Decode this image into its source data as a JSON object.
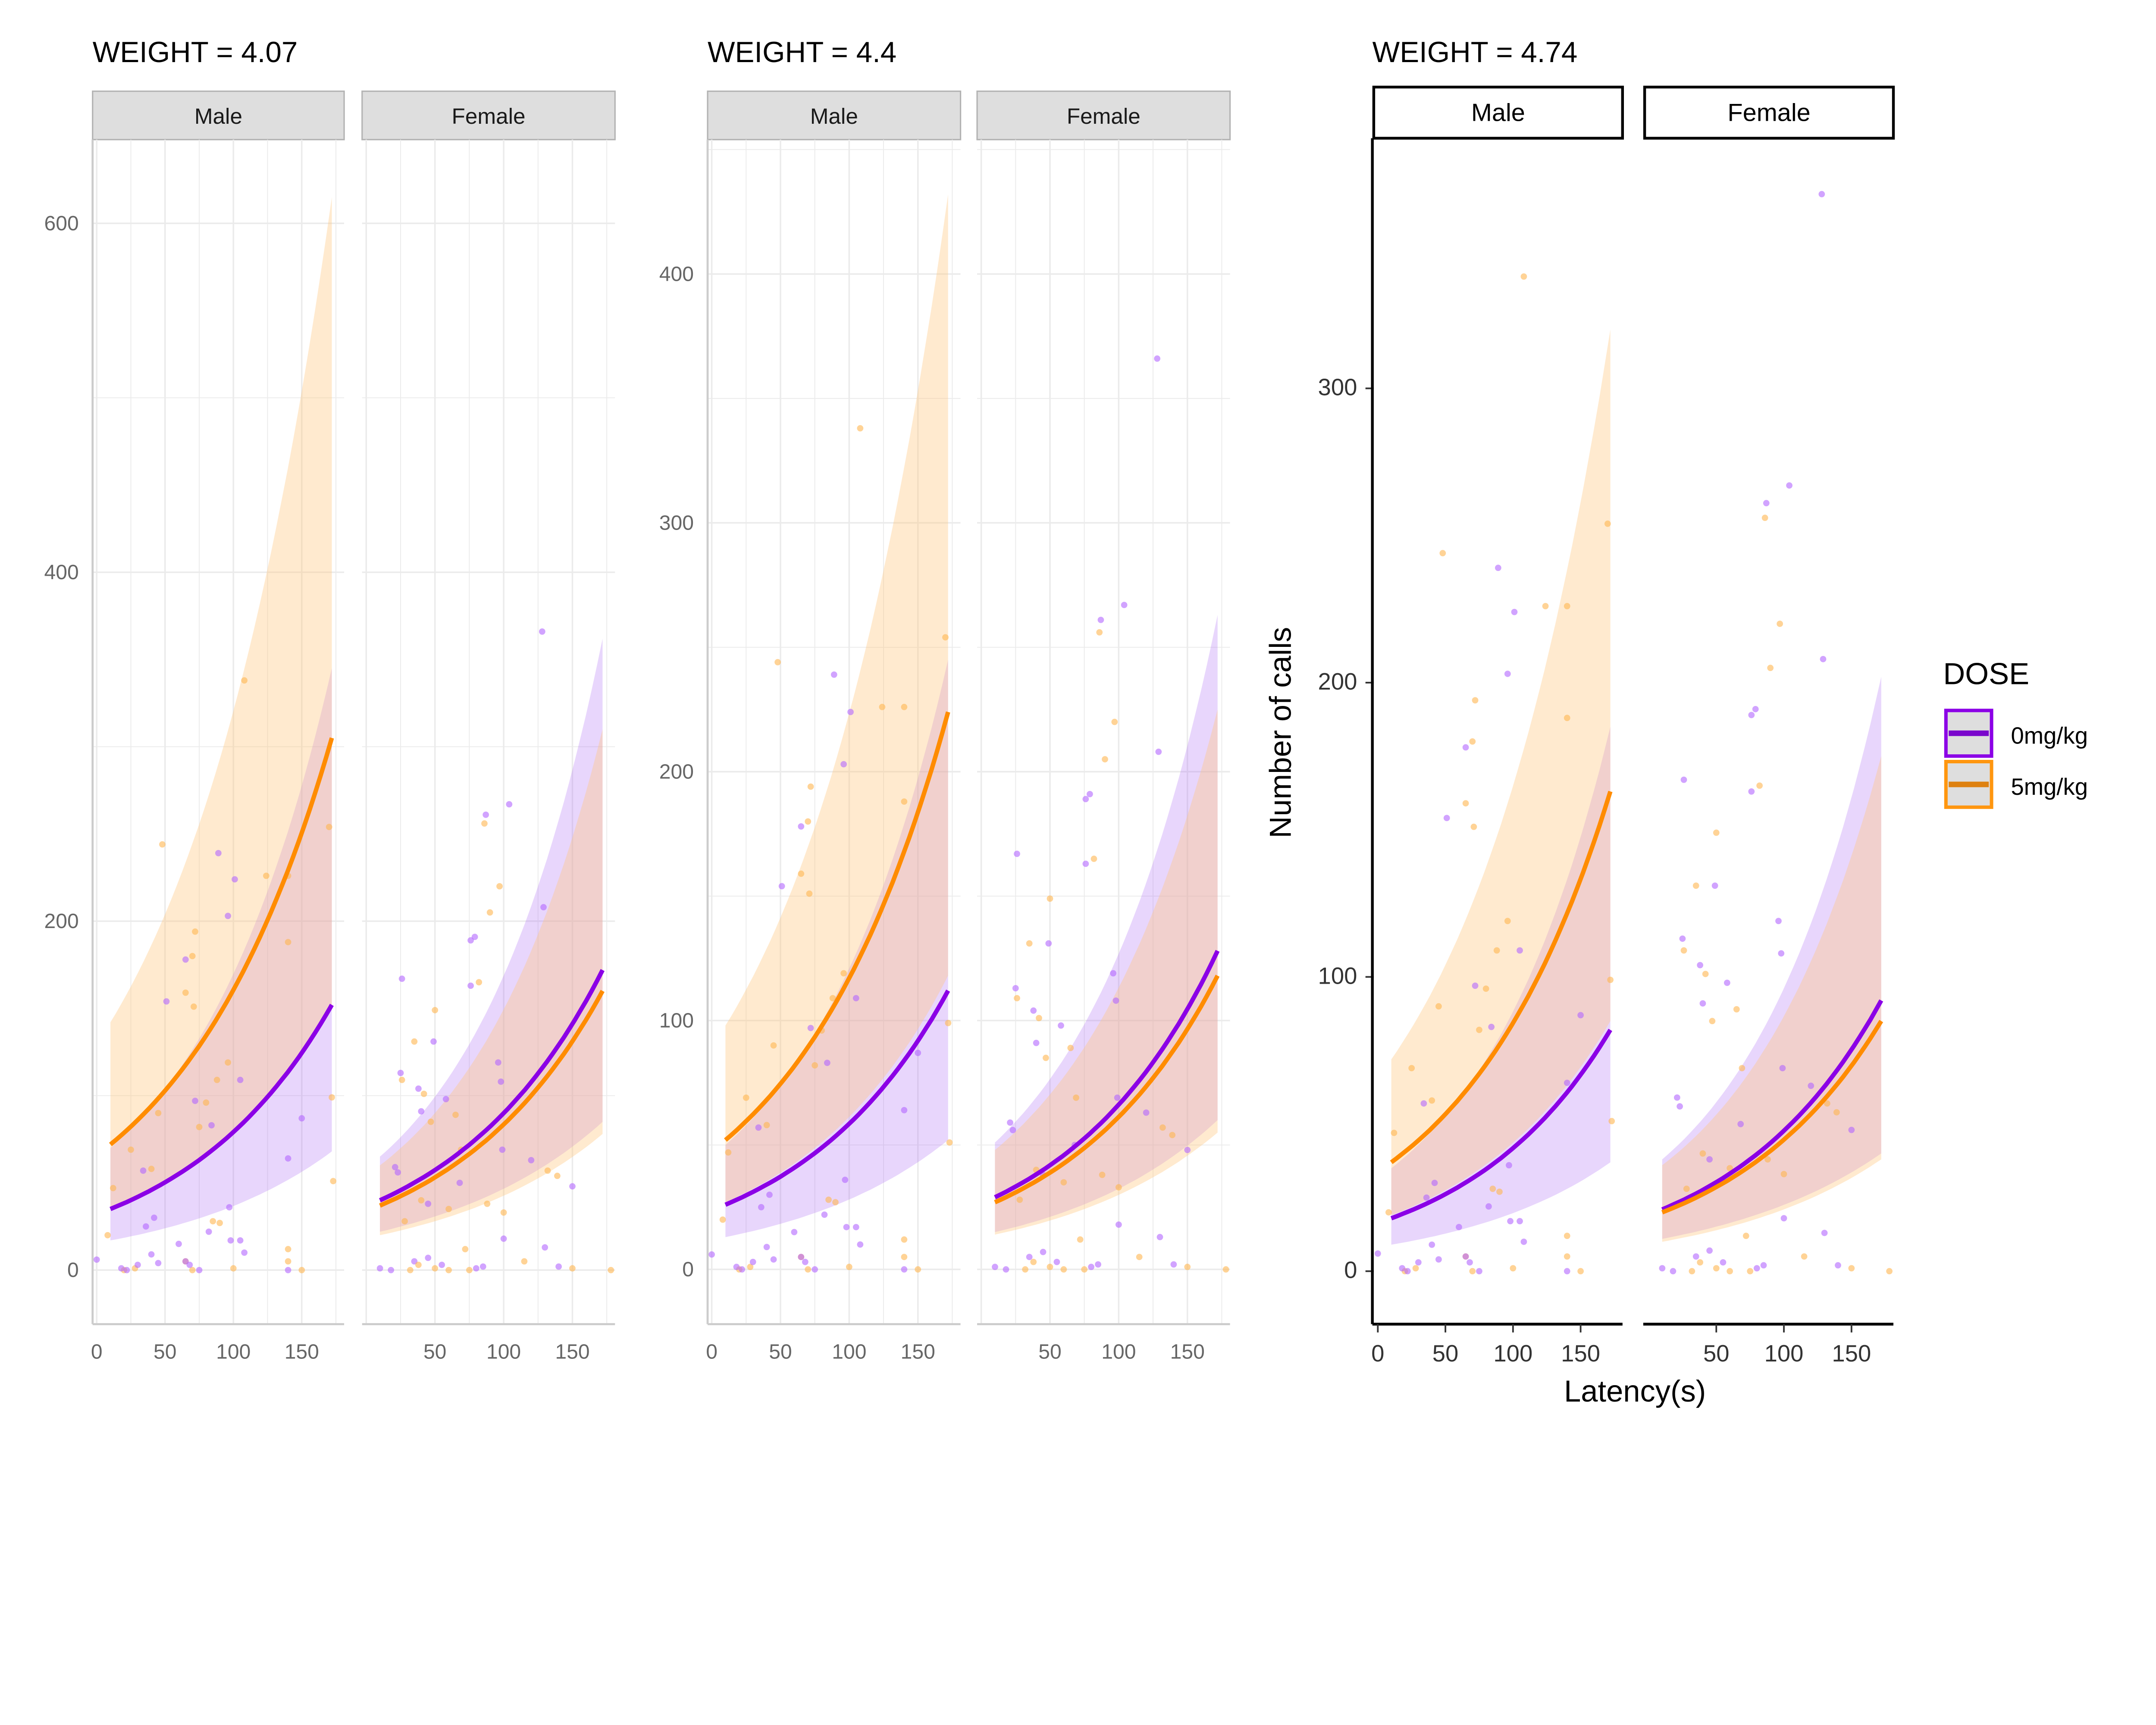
{
  "chart_data": {
    "type": "scatter",
    "xlabel": "Latency(s)",
    "ylabel": "Number of calls",
    "legend": {
      "title": "DOSE",
      "position": "right",
      "entries": [
        {
          "label": "0mg/kg",
          "color": "#8b00e6",
          "band": "#a25cf5"
        },
        {
          "label": "5mg/kg",
          "color": "#ff8c00",
          "band": "#ffc880"
        }
      ]
    },
    "xlim": [
      -3,
      181
    ],
    "points": {
      "columns": [
        "latency",
        "calls",
        "dose"
      ],
      "Male": [
        [
          48,
          244,
          "5mg/kg"
        ],
        [
          108,
          338,
          "5mg/kg"
        ],
        [
          170,
          254,
          "5mg/kg"
        ],
        [
          124,
          226,
          "5mg/kg"
        ],
        [
          140,
          226,
          "5mg/kg"
        ],
        [
          140,
          188,
          "5mg/kg"
        ],
        [
          72,
          194,
          "5mg/kg"
        ],
        [
          70,
          180,
          "5mg/kg"
        ],
        [
          65,
          159,
          "5mg/kg"
        ],
        [
          71,
          151,
          "5mg/kg"
        ],
        [
          96,
          119,
          "5mg/kg"
        ],
        [
          80,
          96,
          "5mg/kg"
        ],
        [
          12,
          47,
          "5mg/kg"
        ],
        [
          25,
          69,
          "5mg/kg"
        ],
        [
          45,
          90,
          "5mg/kg"
        ],
        [
          90,
          27,
          "5mg/kg"
        ],
        [
          85,
          28,
          "5mg/kg"
        ],
        [
          140,
          12,
          "5mg/kg"
        ],
        [
          140,
          5,
          "5mg/kg"
        ],
        [
          172,
          99,
          "5mg/kg"
        ],
        [
          173,
          51,
          "5mg/kg"
        ],
        [
          88,
          109,
          "5mg/kg"
        ],
        [
          75,
          82,
          "5mg/kg"
        ],
        [
          20,
          0,
          "5mg/kg"
        ],
        [
          28,
          1,
          "5mg/kg"
        ],
        [
          70,
          0,
          "5mg/kg"
        ],
        [
          65,
          5,
          "5mg/kg"
        ],
        [
          100,
          1,
          "5mg/kg"
        ],
        [
          150,
          0,
          "5mg/kg"
        ],
        [
          8,
          20,
          "5mg/kg"
        ],
        [
          40,
          58,
          "5mg/kg"
        ],
        [
          89,
          239,
          "0mg/kg"
        ],
        [
          101,
          224,
          "0mg/kg"
        ],
        [
          96,
          203,
          "0mg/kg"
        ],
        [
          65,
          178,
          "0mg/kg"
        ],
        [
          51,
          154,
          "0mg/kg"
        ],
        [
          105,
          109,
          "0mg/kg"
        ],
        [
          150,
          87,
          "0mg/kg"
        ],
        [
          72,
          97,
          "0mg/kg"
        ],
        [
          84,
          83,
          "0mg/kg"
        ],
        [
          34,
          57,
          "0mg/kg"
        ],
        [
          36,
          25,
          "0mg/kg"
        ],
        [
          42,
          30,
          "0mg/kg"
        ],
        [
          45,
          4,
          "0mg/kg"
        ],
        [
          40,
          9,
          "0mg/kg"
        ],
        [
          30,
          3,
          "0mg/kg"
        ],
        [
          22,
          0,
          "0mg/kg"
        ],
        [
          18,
          1,
          "0mg/kg"
        ],
        [
          75,
          0,
          "0mg/kg"
        ],
        [
          65,
          5,
          "0mg/kg"
        ],
        [
          68,
          3,
          "0mg/kg"
        ],
        [
          60,
          15,
          "0mg/kg"
        ],
        [
          82,
          22,
          "0mg/kg"
        ],
        [
          97,
          36,
          "0mg/kg"
        ],
        [
          98,
          17,
          "0mg/kg"
        ],
        [
          105,
          17,
          "0mg/kg"
        ],
        [
          108,
          10,
          "0mg/kg"
        ],
        [
          140,
          64,
          "0mg/kg"
        ],
        [
          140,
          0,
          "0mg/kg"
        ],
        [
          0,
          6,
          "0mg/kg"
        ]
      ],
      "Female": [
        [
          128,
          366,
          "0mg/kg"
        ],
        [
          104,
          267,
          "0mg/kg"
        ],
        [
          87,
          261,
          "0mg/kg"
        ],
        [
          129,
          208,
          "0mg/kg"
        ],
        [
          79,
          191,
          "0mg/kg"
        ],
        [
          76,
          189,
          "0mg/kg"
        ],
        [
          76,
          163,
          "0mg/kg"
        ],
        [
          26,
          167,
          "0mg/kg"
        ],
        [
          49,
          131,
          "0mg/kg"
        ],
        [
          96,
          119,
          "0mg/kg"
        ],
        [
          25,
          113,
          "0mg/kg"
        ],
        [
          98,
          108,
          "0mg/kg"
        ],
        [
          38,
          104,
          "0mg/kg"
        ],
        [
          40,
          91,
          "0mg/kg"
        ],
        [
          99,
          69,
          "0mg/kg"
        ],
        [
          21,
          59,
          "0mg/kg"
        ],
        [
          23,
          56,
          "0mg/kg"
        ],
        [
          150,
          48,
          "0mg/kg"
        ],
        [
          58,
          98,
          "0mg/kg"
        ],
        [
          130,
          13,
          "0mg/kg"
        ],
        [
          120,
          63,
          "0mg/kg"
        ],
        [
          100,
          18,
          "0mg/kg"
        ],
        [
          85,
          2,
          "0mg/kg"
        ],
        [
          80,
          1,
          "0mg/kg"
        ],
        [
          45,
          7,
          "0mg/kg"
        ],
        [
          55,
          3,
          "0mg/kg"
        ],
        [
          10,
          1,
          "0mg/kg"
        ],
        [
          18,
          0,
          "0mg/kg"
        ],
        [
          35,
          5,
          "0mg/kg"
        ],
        [
          140,
          2,
          "0mg/kg"
        ],
        [
          45,
          38,
          "0mg/kg"
        ],
        [
          68,
          50,
          "0mg/kg"
        ],
        [
          86,
          256,
          "5mg/kg"
        ],
        [
          97,
          220,
          "5mg/kg"
        ],
        [
          90,
          205,
          "5mg/kg"
        ],
        [
          82,
          165,
          "5mg/kg"
        ],
        [
          50,
          149,
          "5mg/kg"
        ],
        [
          35,
          131,
          "5mg/kg"
        ],
        [
          26,
          109,
          "5mg/kg"
        ],
        [
          42,
          101,
          "5mg/kg"
        ],
        [
          65,
          89,
          "5mg/kg"
        ],
        [
          47,
          85,
          "5mg/kg"
        ],
        [
          69,
          69,
          "5mg/kg"
        ],
        [
          132,
          57,
          "5mg/kg"
        ],
        [
          139,
          54,
          "5mg/kg"
        ],
        [
          100,
          33,
          "5mg/kg"
        ],
        [
          115,
          5,
          "5mg/kg"
        ],
        [
          60,
          35,
          "5mg/kg"
        ],
        [
          40,
          40,
          "5mg/kg"
        ],
        [
          178,
          0,
          "5mg/kg"
        ],
        [
          150,
          1,
          "5mg/kg"
        ],
        [
          32,
          0,
          "5mg/kg"
        ],
        [
          38,
          3,
          "5mg/kg"
        ],
        [
          50,
          1,
          "5mg/kg"
        ],
        [
          60,
          0,
          "5mg/kg"
        ],
        [
          72,
          12,
          "5mg/kg"
        ],
        [
          75,
          0,
          "5mg/kg"
        ],
        [
          88,
          38,
          "5mg/kg"
        ],
        [
          28,
          28,
          "5mg/kg"
        ]
      ]
    },
    "panels": [
      {
        "title": "WEIGHT = 4.07",
        "ylim": [
          -31,
          648
        ],
        "yticks": [
          0,
          200,
          400,
          600
        ],
        "xticks": {
          "Male": [
            0,
            50,
            100,
            150
          ],
          "Female": [
            50,
            100,
            150
          ]
        },
        "grid": true,
        "facets": [
          {
            "strip": "Male",
            "fit_x": [
              10,
              172
            ],
            "fits": [
              {
                "dose": "0mg/kg",
                "fit": [
                  35,
                  152
                ],
                "lower": [
                  17,
                  68
                ],
                "upper": [
                  70,
                  345
                ]
              },
              {
                "dose": "5mg/kg",
                "fit": [
                  72,
                  305
                ],
                "lower": [
                  35,
                  150
                ],
                "upper": [
                  142,
                  615
                ]
              }
            ]
          },
          {
            "strip": "Female",
            "fit_x": [
              10,
              172
            ],
            "fits": [
              {
                "dose": "0mg/kg",
                "fit": [
                  40,
                  172
                ],
                "lower": [
                  22,
                  85
                ],
                "upper": [
                  65,
                  362
                ]
              },
              {
                "dose": "5mg/kg",
                "fit": [
                  37,
                  160
                ],
                "lower": [
                  20,
                  78
                ],
                "upper": [
                  60,
                  310
                ]
              }
            ]
          }
        ]
      },
      {
        "title": "WEIGHT = 4.4",
        "ylim": [
          -22,
          454
        ],
        "yticks": [
          0,
          100,
          200,
          300,
          400
        ],
        "xticks": {
          "Male": [
            0,
            50,
            100,
            150
          ],
          "Female": [
            50,
            100,
            150
          ]
        },
        "grid": true,
        "facets": [
          {
            "strip": "Male",
            "fit_x": [
              10,
              172
            ],
            "fits": [
              {
                "dose": "0mg/kg",
                "fit": [
                  26,
                  112
                ],
                "lower": [
                  13,
                  52
                ],
                "upper": [
                  50,
                  245
                ]
              },
              {
                "dose": "5mg/kg",
                "fit": [
                  52,
                  224
                ],
                "lower": [
                  27,
                  118
                ],
                "upper": [
                  98,
                  432
                ]
              }
            ]
          },
          {
            "strip": "Female",
            "fit_x": [
              10,
              172
            ],
            "fits": [
              {
                "dose": "0mg/kg",
                "fit": [
                  29,
                  128
                ],
                "lower": [
                  15,
                  60
                ],
                "upper": [
                  51,
                  263
                ]
              },
              {
                "dose": "5mg/kg",
                "fit": [
                  27,
                  118
                ],
                "lower": [
                  14,
                  55
                ],
                "upper": [
                  48,
                  225
                ]
              }
            ]
          }
        ]
      },
      {
        "title": "WEIGHT = 4.74",
        "ylim": [
          -18,
          385
        ],
        "yticks": [
          0,
          100,
          200,
          300
        ],
        "xticks": {
          "Male": [
            0,
            50,
            100,
            150
          ],
          "Female": [
            50,
            100,
            150
          ]
        },
        "grid": false,
        "facets": [
          {
            "strip": "Male",
            "fit_x": [
              10,
              172
            ],
            "fits": [
              {
                "dose": "0mg/kg",
                "fit": [
                  18,
                  82
                ],
                "lower": [
                  9,
                  37
                ],
                "upper": [
                  35,
                  185
                ]
              },
              {
                "dose": "5mg/kg",
                "fit": [
                  37,
                  163
                ],
                "lower": [
                  19,
                  85
                ],
                "upper": [
                  72,
                  320
                ]
              }
            ]
          },
          {
            "strip": "Female",
            "fit_x": [
              10,
              172
            ],
            "fits": [
              {
                "dose": "0mg/kg",
                "fit": [
                  21,
                  92
                ],
                "lower": [
                  11,
                  40
                ],
                "upper": [
                  38,
                  202
                ]
              },
              {
                "dose": "5mg/kg",
                "fit": [
                  20,
                  85
                ],
                "lower": [
                  10,
                  38
                ],
                "upper": [
                  36,
                  175
                ]
              }
            ]
          }
        ]
      }
    ]
  }
}
